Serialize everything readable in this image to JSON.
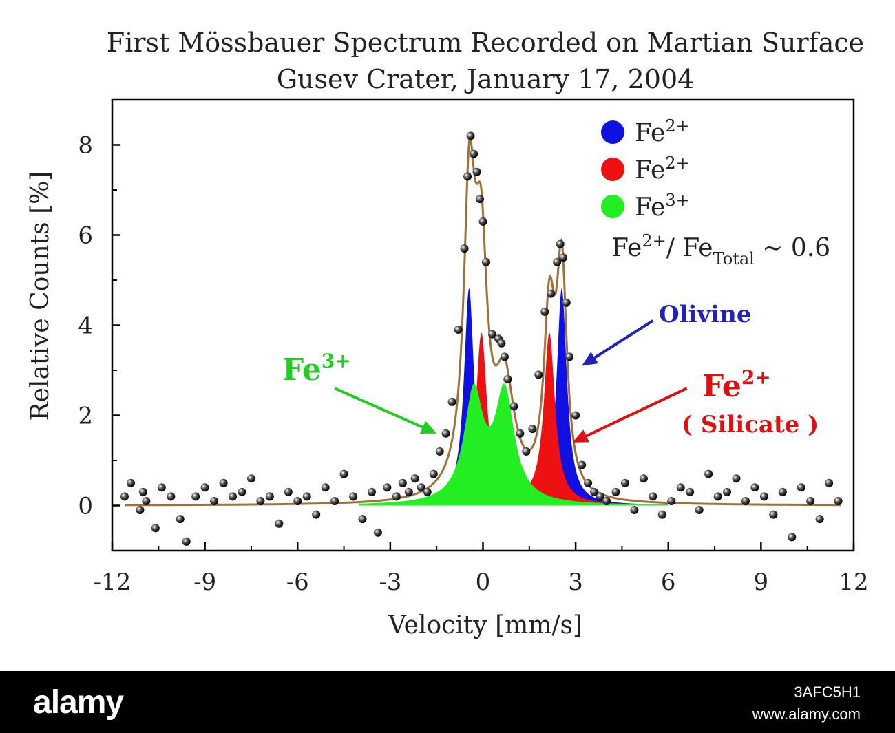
{
  "chart_data": {
    "type": "scatter",
    "title": "First Mössbauer Spectrum Recorded on Martian Surface",
    "subtitle": "Gusev Crater, January 17, 2004",
    "xlabel": "Velocity [mm/s]",
    "ylabel": "Relative Counts [%]",
    "xlim": [
      -12,
      12
    ],
    "ylim": [
      -1,
      9
    ],
    "xticks": [
      -12,
      -9,
      -6,
      -3,
      0,
      3,
      6,
      9,
      12
    ],
    "yticks": [
      0,
      2,
      4,
      6,
      8
    ],
    "legend_position": "top-right",
    "legend": [
      {
        "label": "Fe",
        "sup": "2+",
        "color": "#1010e0"
      },
      {
        "label": "Fe",
        "sup": "2+",
        "color": "#ee1111"
      },
      {
        "label": "Fe",
        "sup": "3+",
        "color": "#22ee22"
      }
    ],
    "ratio_text": {
      "pre": "Fe",
      "sup": "2+",
      "mid": "/ Fe",
      "sub": "Total",
      "post": " ~ 0.6"
    },
    "annotations": [
      {
        "text": "Olivine",
        "color": "#2222bb",
        "from": [
          5.5,
          4.1
        ],
        "to": [
          3.2,
          3.1
        ]
      },
      {
        "text": "Fe",
        "sup": "2+",
        "subtext": "( Silicate )",
        "color": "#dd1111",
        "from": [
          6.6,
          2.6
        ],
        "to": [
          2.9,
          1.4
        ]
      },
      {
        "text": "Fe",
        "sup": "3+",
        "color": "#22cc22",
        "from": [
          -4.8,
          2.6
        ],
        "to": [
          -1.5,
          1.6
        ]
      }
    ],
    "fit_color": "#a0703a",
    "components": [
      {
        "name": "Fe2+ (olivine)",
        "color": "#1010e0",
        "doublet": [
          [
            -0.45,
            4.8,
            0.2
          ],
          [
            2.55,
            4.8,
            0.2
          ]
        ]
      },
      {
        "name": "Fe2+ (silicate)",
        "color": "#ee1111",
        "doublet": [
          [
            -0.05,
            3.8,
            0.22
          ],
          [
            2.15,
            3.8,
            0.22
          ]
        ]
      },
      {
        "name": "Fe3+",
        "color": "#22ee22",
        "doublet": [
          [
            -0.3,
            2.4,
            0.38
          ],
          [
            0.7,
            2.4,
            0.38
          ]
        ]
      }
    ],
    "series": [
      {
        "type": "scatter",
        "x": [
          -11.6,
          -11.4,
          -11.1,
          -11.0,
          -10.9,
          -10.6,
          -10.4,
          -10.1,
          -9.8,
          -9.6,
          -9.3,
          -9.0,
          -8.7,
          -8.4,
          -8.1,
          -7.8,
          -7.5,
          -7.2,
          -6.9,
          -6.6,
          -6.3,
          -6.0,
          -5.7,
          -5.4,
          -5.1,
          -4.8,
          -4.5,
          -4.2,
          -3.9,
          -3.6,
          -3.4,
          -3.1,
          -2.8,
          -2.6,
          -2.4,
          -2.2,
          -2.0,
          -1.8,
          -1.6,
          -1.4,
          -1.2,
          -1.0,
          -0.8,
          -0.6,
          -0.5,
          -0.4,
          -0.3,
          -0.2,
          -0.1,
          0.0,
          0.1,
          0.3,
          0.5,
          0.6,
          0.7,
          0.8,
          1.0,
          1.2,
          1.4,
          1.6,
          1.8,
          2.0,
          2.2,
          2.4,
          2.5,
          2.6,
          2.7,
          2.8,
          3.0,
          3.2,
          3.4,
          3.6,
          3.8,
          4.0,
          4.3,
          4.6,
          4.9,
          5.2,
          5.5,
          5.8,
          6.1,
          6.4,
          6.7,
          7.0,
          7.3,
          7.6,
          7.9,
          8.2,
          8.5,
          8.8,
          9.1,
          9.4,
          9.7,
          10.0,
          10.3,
          10.6,
          10.9,
          11.2,
          11.5
        ],
        "y": [
          0.2,
          0.5,
          -0.1,
          0.3,
          0.1,
          -0.5,
          0.4,
          0.2,
          -0.3,
          -0.8,
          0.2,
          0.4,
          0.1,
          0.5,
          0.2,
          0.3,
          0.6,
          0.1,
          0.2,
          -0.4,
          0.3,
          0.1,
          0.2,
          -0.2,
          0.4,
          0.1,
          0.7,
          0.2,
          -0.3,
          0.3,
          -0.6,
          0.4,
          0.2,
          0.5,
          0.3,
          0.6,
          0.4,
          0.3,
          0.7,
          1.2,
          1.6,
          2.3,
          3.9,
          5.7,
          7.3,
          8.2,
          7.8,
          7.4,
          6.8,
          6.3,
          5.4,
          3.8,
          3.7,
          3.6,
          3.3,
          2.8,
          2.2,
          1.6,
          1.2,
          1.7,
          2.9,
          4.3,
          4.7,
          5.4,
          5.8,
          5.5,
          4.5,
          3.3,
          2.0,
          0.9,
          0.5,
          0.3,
          0.2,
          0.1,
          0.3,
          0.5,
          -0.1,
          0.6,
          0.2,
          -0.2,
          0.1,
          0.4,
          0.3,
          -0.1,
          0.7,
          0.2,
          0.3,
          0.6,
          0.1,
          0.4,
          0.2,
          -0.2,
          0.3,
          -0.7,
          0.4,
          0.1,
          -0.3,
          0.5,
          0.1
        ]
      }
    ]
  },
  "footer": {
    "brand": "alamy",
    "image_id": "3AFC5H1",
    "site": "www.alamy.com"
  }
}
